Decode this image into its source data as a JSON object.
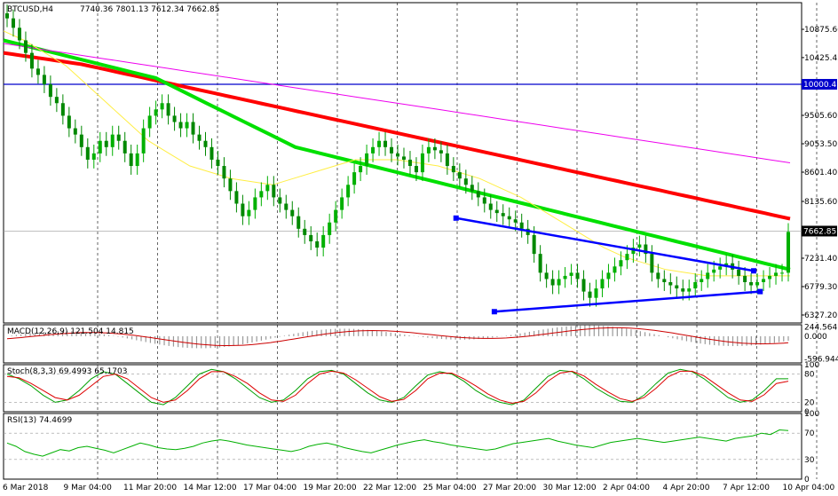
{
  "chart_data": {
    "type": "candlestick",
    "symbol_header": "BTCUSD,H4",
    "ohlc_header": "7740.36 7801.13 7612.34 7662.85",
    "price_axis": {
      "range": [
        6200,
        11300
      ],
      "ticks": [
        "10875.60",
        "10425.45",
        "9505.60",
        "9053.50",
        "8601.40",
        "8135.60",
        "7231.40",
        "6779.30",
        "6327.20"
      ],
      "tick_values": [
        10875.6,
        10425.45,
        9505.6,
        9053.5,
        8601.4,
        8135.6,
        7231.4,
        6779.3,
        6327.2
      ],
      "current_price_label": "7662.85",
      "current_price": 7662.85,
      "level_label": "10000.41",
      "level": 10000.41
    },
    "time_axis": {
      "labels": [
        "6 Mar 2018",
        "9 Mar 04:00",
        "11 Mar 20:00",
        "14 Mar 12:00",
        "17 Mar 04:00",
        "19 Mar 20:00",
        "22 Mar 12:00",
        "25 Mar 04:00",
        "27 Mar 20:00",
        "30 Mar 12:00",
        "2 Apr 04:00",
        "4 Apr 20:00",
        "7 Apr 12:00",
        "10 Apr 04:00"
      ]
    },
    "closes": [
      11050,
      10900,
      10700,
      10500,
      10250,
      10150,
      10000,
      9800,
      9700,
      9500,
      9300,
      9200,
      9000,
      8800,
      8900,
      9100,
      9000,
      9200,
      9100,
      8900,
      8700,
      8900,
      9300,
      9500,
      9600,
      9700,
      9500,
      9400,
      9300,
      9400,
      9200,
      9100,
      9000,
      8800,
      8700,
      8500,
      8300,
      8100,
      7900,
      8000,
      8200,
      8300,
      8400,
      8200,
      8100,
      8000,
      7900,
      7700,
      7600,
      7500,
      7400,
      7600,
      7800,
      8000,
      8200,
      8400,
      8600,
      8700,
      8900,
      9000,
      9100,
      9000,
      8900,
      8850,
      8800,
      8700,
      8600,
      8900,
      9000,
      8950,
      8900,
      8700,
      8600,
      8500,
      8400,
      8300,
      8200,
      8100,
      8000,
      7950,
      7900,
      7850,
      7800,
      7700,
      7600,
      7300,
      7000,
      6900,
      6800,
      6900,
      6950,
      7000,
      6900,
      6700,
      6600,
      6750,
      6900,
      7000,
      7100,
      7200,
      7300,
      7400,
      7450,
      7300,
      7000,
      6900,
      6850,
      6800,
      6750,
      6700,
      6750,
      6850,
      6900,
      7000,
      7050,
      7100,
      7150,
      7050,
      6950,
      6850,
      6800,
      6850,
      6900,
      6950,
      7000,
      7000,
      7650
    ],
    "ma_series": [
      {
        "color": "#ff0000",
        "values": [
          10500,
          10480,
          10460,
          10440,
          10420,
          10400,
          10380,
          10360,
          10340,
          10320,
          10290,
          10260,
          10230,
          10200,
          10170,
          10140,
          10110,
          10080,
          10050,
          10020,
          9990,
          9960,
          9930,
          9900,
          9870,
          9840,
          9810,
          9780,
          9750,
          9720,
          9690,
          9660,
          9630,
          9600,
          9570,
          9540,
          9510,
          9480,
          9450,
          9420,
          9390,
          9360,
          9330,
          9300,
          9270,
          9240,
          9210,
          9180,
          9150,
          9120,
          9090,
          9060,
          9030,
          9000,
          8970,
          8940,
          8910,
          8880,
          8850,
          8820,
          8790,
          8760,
          8730,
          8700,
          8670,
          8640,
          8610,
          8580,
          8550,
          8520,
          8490,
          8460,
          8430,
          8400,
          8370,
          8340,
          8310,
          8280,
          8250,
          8220,
          8190,
          8160,
          8130,
          8100,
          8070,
          8040,
          8010,
          7980,
          7950,
          7920,
          7890,
          7860
        ]
      },
      {
        "color": "#00e000",
        "values": [
          10700,
          10650,
          10600,
          10550,
          10500,
          10450,
          10400,
          10350,
          10300,
          10250,
          10200,
          10150,
          10100,
          10000,
          9900,
          9800,
          9700,
          9600,
          9500,
          9400,
          9300,
          9200,
          9100,
          9000,
          8950,
          8900,
          8850,
          8800,
          8750,
          8700,
          8650,
          8600,
          8550,
          8500,
          8450,
          8400,
          8350,
          8300,
          8250,
          8200,
          8150,
          8100,
          8050,
          8000,
          7950,
          7900,
          7850,
          7800,
          7750,
          7700,
          7650,
          7600,
          7550,
          7500,
          7450,
          7400,
          7350,
          7300,
          7250,
          7200,
          7150,
          7100,
          7050
        ]
      },
      {
        "color": "#ee00ee",
        "values": [
          10650,
          10600,
          10550,
          10500,
          10450,
          10400,
          10350,
          10300,
          10250,
          10200,
          10150,
          10100,
          10050,
          10000,
          9950,
          9900,
          9850,
          9800,
          9750,
          9700,
          9650,
          9600,
          9550,
          9500,
          9450,
          9400,
          9350,
          9300,
          9250,
          9200,
          9150,
          9100,
          9050,
          9000,
          8950,
          8900,
          8850,
          8800,
          8750
        ]
      },
      {
        "color": "#ffee44",
        "values": [
          10850,
          10700,
          10500,
          10300,
          10000,
          9700,
          9400,
          9100,
          8900,
          8700,
          8600,
          8500,
          8450,
          8400,
          8500,
          8600,
          8700,
          8800,
          8800,
          8800,
          8750,
          8700,
          8600,
          8500,
          8350,
          8200,
          8000,
          7800,
          7600,
          7400,
          7250,
          7150,
          7050,
          7000,
          6950,
          6950,
          6950,
          6950,
          6950
        ]
      }
    ],
    "trendlines": [
      {
        "color": "#0000ff",
        "from": [
          0.567,
          7870
        ],
        "to": [
          0.94,
          7030
        ]
      },
      {
        "color": "#0000ff",
        "from": [
          0.615,
          6380
        ],
        "to": [
          0.948,
          6700
        ]
      }
    ],
    "macd": {
      "header": "MACD(12,26,9) 121.504 14.815",
      "ticks": [
        "244.564",
        "0.000",
        "-596.944"
      ],
      "tick_values": [
        244.564,
        0,
        -596.944
      ],
      "range": [
        -700,
        300
      ]
    },
    "stoch": {
      "header": "Stoch(8,3,3) 69.4993 65.1703",
      "ticks": [
        "100",
        "80",
        "20",
        "0"
      ],
      "tick_values": [
        100,
        80,
        20,
        0
      ],
      "range": [
        0,
        100
      ],
      "main": [
        80,
        70,
        55,
        35,
        20,
        25,
        45,
        70,
        85,
        80,
        60,
        40,
        20,
        15,
        30,
        55,
        80,
        90,
        85,
        70,
        50,
        30,
        20,
        25,
        45,
        70,
        85,
        88,
        80,
        60,
        40,
        25,
        20,
        30,
        55,
        78,
        85,
        80,
        65,
        45,
        30,
        20,
        15,
        25,
        50,
        75,
        88,
        85,
        70,
        50,
        35,
        22,
        20,
        35,
        60,
        82,
        90,
        85,
        70,
        50,
        30,
        20,
        25,
        45,
        70,
        70
      ],
      "signal": [
        75,
        72,
        60,
        45,
        30,
        25,
        35,
        55,
        75,
        80,
        70,
        50,
        30,
        20,
        25,
        45,
        70,
        85,
        85,
        75,
        60,
        40,
        25,
        22,
        35,
        60,
        80,
        86,
        82,
        68,
        50,
        32,
        22,
        26,
        45,
        70,
        82,
        82,
        70,
        55,
        38,
        25,
        18,
        22,
        40,
        65,
        82,
        86,
        76,
        58,
        42,
        28,
        22,
        30,
        50,
        74,
        86,
        86,
        76,
        58,
        40,
        25,
        22,
        36,
        60,
        65
      ]
    },
    "rsi": {
      "header": "RSI(13) 74.4699",
      "ticks": [
        "100",
        "70",
        "30",
        "0"
      ],
      "tick_values": [
        100,
        70,
        30,
        0
      ],
      "range": [
        0,
        100
      ],
      "values": [
        55,
        50,
        42,
        38,
        35,
        40,
        45,
        43,
        48,
        50,
        47,
        44,
        40,
        45,
        50,
        55,
        52,
        48,
        46,
        45,
        47,
        50,
        55,
        58,
        60,
        58,
        55,
        52,
        50,
        48,
        46,
        44,
        42,
        45,
        50,
        53,
        55,
        52,
        48,
        45,
        42,
        40,
        44,
        48,
        52,
        55,
        58,
        60,
        57,
        55,
        52,
        50,
        48,
        46,
        44,
        46,
        50,
        54,
        56,
        58,
        60,
        62,
        58,
        55,
        52,
        50,
        48,
        52,
        56,
        58,
        60,
        62,
        60,
        58,
        56,
        58,
        60,
        62,
        64,
        62,
        60,
        58,
        62,
        64,
        66,
        70,
        68,
        75,
        74
      ]
    }
  }
}
